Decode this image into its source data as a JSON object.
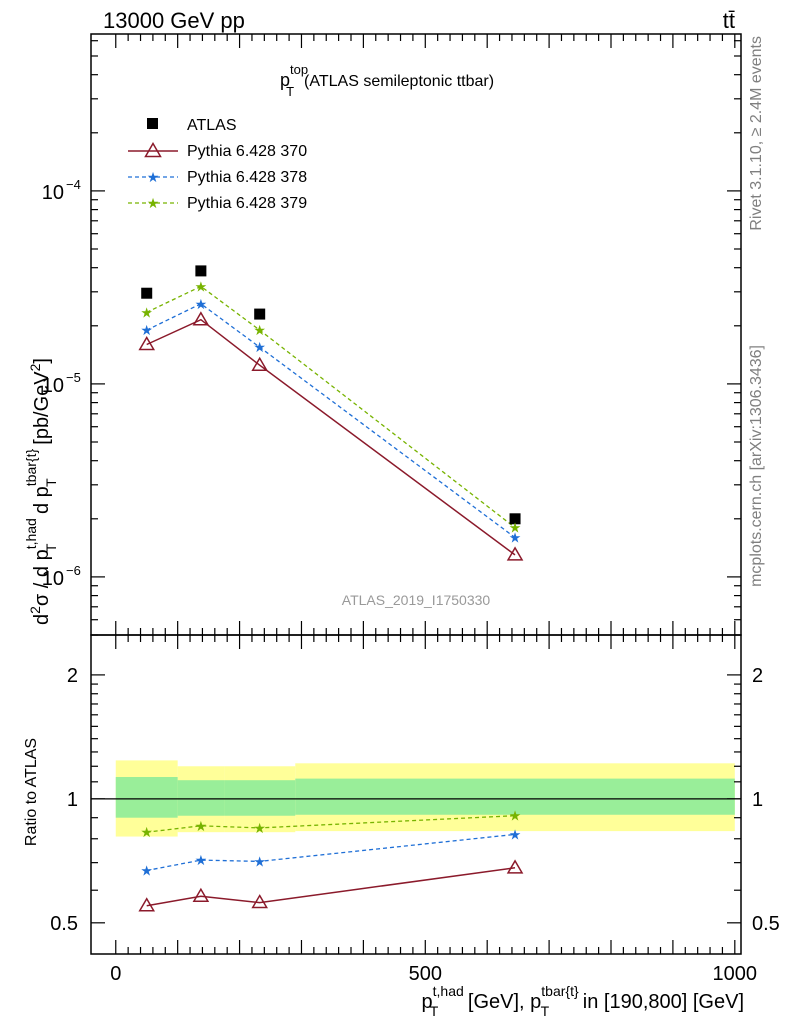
{
  "header": {
    "energy_label": "13000 GeV pp",
    "process_label": "tt̄",
    "title_main": "p",
    "title_sup": "top",
    "title_sub": "T",
    "title_rest": "(ATLAS semileptonic ttbar)",
    "analysis_id": "ATLAS_2019_I1750330",
    "side_label_top": "Rivet 3.1.10, ≥ 2.4M events",
    "side_label_bottom": "mcplots.cern.ch [arXiv:1306.3436]"
  },
  "main_ylabel": {
    "part1": "d",
    "sup1": "2",
    "part2": "σ / d p",
    "sup2": "t,had",
    "sub2": "T",
    "part3": " d p",
    "sup3": "tbar{t}",
    "sub3": "T",
    "part4": " [pb/GeV",
    "sup4": "2",
    "part5": "]"
  },
  "ratio_ylabel": "Ratio to ATLAS",
  "xlabel": {
    "part1": "p",
    "sup1": "t,had",
    "sub1": "T",
    "part2": " [GeV], p",
    "sup2": "tbar{t}",
    "sub2": "T",
    "part3": " in [190,800] [GeV]"
  },
  "chart_data": [
    {
      "type": "scatter",
      "panel": "main",
      "yscale": "log",
      "xlim": [
        -40,
        1010
      ],
      "ylim": [
        5e-07,
        0.00065
      ],
      "grid": false,
      "legend_placement": "top-left",
      "y_tick_labels": [
        "10^-6",
        "10^-5",
        "10^-4"
      ],
      "x": [
        50,
        137.5,
        232.5,
        645
      ],
      "series": [
        {
          "name": "ATLAS",
          "values": [
            2.95e-05,
            3.85e-05,
            2.3e-05,
            2e-06
          ],
          "color": "#000000",
          "marker": "square",
          "line": "none"
        },
        {
          "name": "Pythia 6.428 370",
          "values": [
            1.6e-05,
            2.15e-05,
            1.25e-05,
            1.3e-06
          ],
          "color": "#8b1a2b",
          "marker": "triangle-open",
          "line": "solid"
        },
        {
          "name": "Pythia 6.428 378",
          "values": [
            1.9e-05,
            2.6e-05,
            1.55e-05,
            1.6e-06
          ],
          "color": "#1f6fd6",
          "marker": "star",
          "line": "dashed"
        },
        {
          "name": "Pythia 6.428 379",
          "values": [
            2.35e-05,
            3.2e-05,
            1.9e-05,
            1.8e-06
          ],
          "color": "#77b300",
          "marker": "star",
          "line": "dashed"
        }
      ]
    },
    {
      "type": "line",
      "panel": "ratio",
      "yscale": "log",
      "xlim": [
        -40,
        1010
      ],
      "ylim": [
        0.42,
        2.5
      ],
      "x_ticks": [
        0,
        500,
        1000
      ],
      "y_ticks": [
        0.5,
        1,
        2
      ],
      "reference": 1,
      "bands": [
        {
          "x_edges": [
            0,
            100,
            175,
            290,
            1000
          ],
          "stat_lo": [
            0.9,
            0.91,
            0.91,
            0.915
          ],
          "stat_hi": [
            1.13,
            1.11,
            1.11,
            1.12
          ],
          "color": "#99ee99"
        },
        {
          "x_edges": [
            0,
            100,
            175,
            290,
            1000
          ],
          "tot_lo": [
            0.81,
            0.83,
            0.83,
            0.835
          ],
          "tot_hi": [
            1.24,
            1.2,
            1.2,
            1.22
          ],
          "color": "#ffff99"
        }
      ],
      "x": [
        50,
        137.5,
        232.5,
        645
      ],
      "series": [
        {
          "name": "Pythia 6.428 370",
          "values": [
            0.55,
            0.58,
            0.56,
            0.68
          ],
          "color": "#8b1a2b",
          "marker": "triangle-open",
          "line": "solid"
        },
        {
          "name": "Pythia 6.428 378",
          "values": [
            0.67,
            0.71,
            0.705,
            0.82
          ],
          "color": "#1f6fd6",
          "marker": "star",
          "line": "dashed"
        },
        {
          "name": "Pythia 6.428 379",
          "values": [
            0.83,
            0.86,
            0.85,
            0.91
          ],
          "color": "#77b300",
          "marker": "star",
          "line": "dashed"
        }
      ]
    }
  ]
}
